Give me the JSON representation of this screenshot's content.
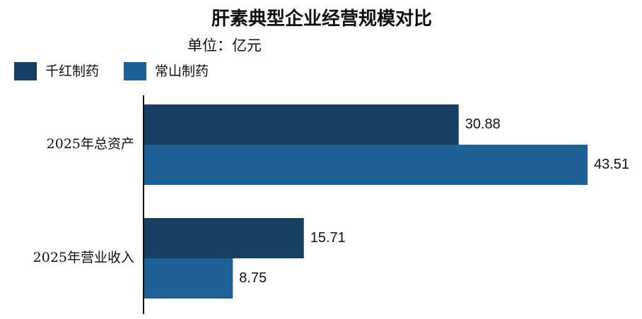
{
  "chart_data": {
    "type": "barh",
    "title": "肝素典型企业经营规模对比",
    "subtitle": "单位：亿元",
    "categories": [
      "2025年总资产",
      "2025年营业收入"
    ],
    "series": [
      {
        "name": "千红制药",
        "color": "#173f62",
        "values": [
          30.88,
          15.71
        ]
      },
      {
        "name": "常山制药",
        "color": "#1f6096",
        "values": [
          43.51,
          8.75
        ]
      }
    ]
  }
}
